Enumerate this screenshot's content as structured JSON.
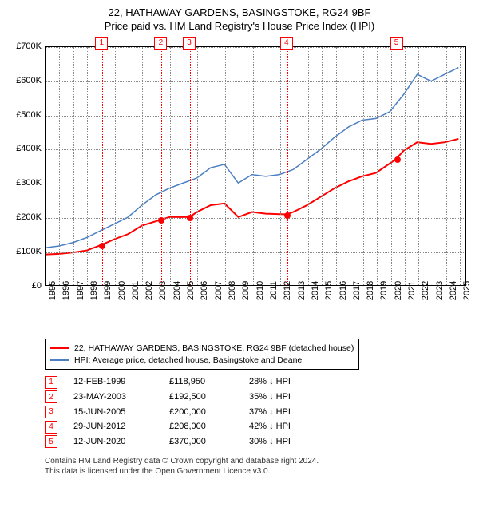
{
  "title": "22, HATHAWAY GARDENS, BASINGSTOKE, RG24 9BF",
  "subtitle": "Price paid vs. HM Land Registry's House Price Index (HPI)",
  "chart": {
    "type": "line",
    "background_color": "#ffffff",
    "grid_color": "#888888",
    "border_color": "#000000",
    "title_fontsize": 13,
    "label_fontsize": 11,
    "y_axis": {
      "min": 0,
      "max": 700000,
      "tick_step": 100000,
      "ticks": [
        "£0",
        "£100K",
        "£200K",
        "£300K",
        "£400K",
        "£500K",
        "£600K",
        "£700K"
      ]
    },
    "x_axis": {
      "min": 1995,
      "max": 2025.5,
      "ticks": [
        "1995",
        "1996",
        "1997",
        "1998",
        "1999",
        "2000",
        "2001",
        "2002",
        "2003",
        "2004",
        "2005",
        "2006",
        "2007",
        "2008",
        "2009",
        "2010",
        "2011",
        "2012",
        "2013",
        "2014",
        "2015",
        "2016",
        "2017",
        "2018",
        "2019",
        "2020",
        "2021",
        "2022",
        "2023",
        "2024",
        "2025"
      ]
    },
    "series": [
      {
        "name": "22, HATHAWAY GARDENS, BASINGSTOKE, RG24 9BF (detached house)",
        "color": "#ff0000",
        "line_width": 2,
        "points": [
          [
            1995,
            90
          ],
          [
            1996,
            92
          ],
          [
            1997,
            96
          ],
          [
            1998,
            102
          ],
          [
            1999.12,
            118.95
          ],
          [
            2000,
            135
          ],
          [
            2001,
            150
          ],
          [
            2002,
            175
          ],
          [
            2003.4,
            192.5
          ],
          [
            2004,
            200
          ],
          [
            2005.46,
            200
          ],
          [
            2006,
            215
          ],
          [
            2007,
            235
          ],
          [
            2008,
            240
          ],
          [
            2009,
            200
          ],
          [
            2010,
            215
          ],
          [
            2011,
            210
          ],
          [
            2012.5,
            208
          ],
          [
            2013,
            215
          ],
          [
            2014,
            235
          ],
          [
            2015,
            260
          ],
          [
            2016,
            285
          ],
          [
            2017,
            305
          ],
          [
            2018,
            320
          ],
          [
            2019,
            330
          ],
          [
            2020.45,
            370
          ],
          [
            2021,
            395
          ],
          [
            2022,
            420
          ],
          [
            2023,
            415
          ],
          [
            2024,
            420
          ],
          [
            2025,
            430
          ]
        ]
      },
      {
        "name": "HPI: Average price, detached house, Basingstoke and Deane",
        "color": "#4a7fc4",
        "line_width": 1.5,
        "points": [
          [
            1995,
            110
          ],
          [
            1996,
            115
          ],
          [
            1997,
            125
          ],
          [
            1998,
            140
          ],
          [
            1999,
            160
          ],
          [
            2000,
            180
          ],
          [
            2001,
            200
          ],
          [
            2002,
            235
          ],
          [
            2003,
            265
          ],
          [
            2004,
            285
          ],
          [
            2005,
            300
          ],
          [
            2006,
            315
          ],
          [
            2007,
            345
          ],
          [
            2008,
            355
          ],
          [
            2009,
            300
          ],
          [
            2010,
            325
          ],
          [
            2011,
            320
          ],
          [
            2012,
            325
          ],
          [
            2013,
            340
          ],
          [
            2014,
            370
          ],
          [
            2015,
            400
          ],
          [
            2016,
            435
          ],
          [
            2017,
            465
          ],
          [
            2018,
            485
          ],
          [
            2019,
            490
          ],
          [
            2020,
            510
          ],
          [
            2021,
            560
          ],
          [
            2022,
            620
          ],
          [
            2023,
            600
          ],
          [
            2024,
            620
          ],
          [
            2025,
            640
          ]
        ]
      }
    ],
    "markers": [
      {
        "idx": "1",
        "x": 1999.12,
        "y": 118.95
      },
      {
        "idx": "2",
        "x": 2003.4,
        "y": 192.5
      },
      {
        "idx": "3",
        "x": 2005.46,
        "y": 200
      },
      {
        "idx": "4",
        "x": 2012.5,
        "y": 208
      },
      {
        "idx": "5",
        "x": 2020.45,
        "y": 370
      }
    ],
    "marker_color": "#ff0000",
    "marker_box_bg": "#ffffff"
  },
  "legend": {
    "items": [
      {
        "color": "#ff0000",
        "label": "22, HATHAWAY GARDENS, BASINGSTOKE, RG24 9BF (detached house)"
      },
      {
        "color": "#4a7fc4",
        "label": "HPI: Average price, detached house, Basingstoke and Deane"
      }
    ]
  },
  "transactions": [
    {
      "idx": "1",
      "date": "12-FEB-1999",
      "price": "£118,950",
      "pct": "28% ↓ HPI"
    },
    {
      "idx": "2",
      "date": "23-MAY-2003",
      "price": "£192,500",
      "pct": "35% ↓ HPI"
    },
    {
      "idx": "3",
      "date": "15-JUN-2005",
      "price": "£200,000",
      "pct": "37% ↓ HPI"
    },
    {
      "idx": "4",
      "date": "29-JUN-2012",
      "price": "£208,000",
      "pct": "42% ↓ HPI"
    },
    {
      "idx": "5",
      "date": "12-JUN-2020",
      "price": "£370,000",
      "pct": "30% ↓ HPI"
    }
  ],
  "footer_line1": "Contains HM Land Registry data © Crown copyright and database right 2024.",
  "footer_line2": "This data is licensed under the Open Government Licence v3.0."
}
